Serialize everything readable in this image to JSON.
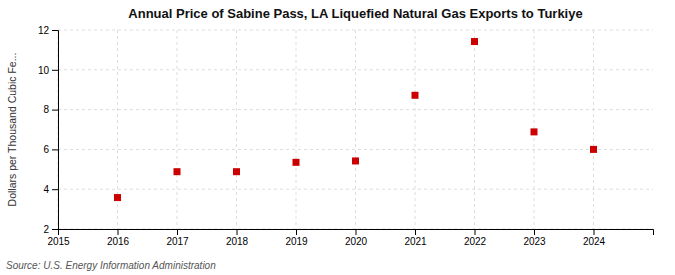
{
  "chart_data": {
    "type": "scatter",
    "title": "Annual Price of Sabine Pass, LA Liquefied Natural Gas Exports to Turkiye",
    "ylabel": "Dollars per Thousand Cubic Fe...",
    "source": "Source: U.S. Energy Information Administration",
    "x": [
      2016,
      2017,
      2018,
      2019,
      2020,
      2021,
      2022,
      2023,
      2024
    ],
    "y": [
      3.58,
      4.88,
      4.88,
      5.35,
      5.42,
      8.72,
      11.42,
      6.88,
      6.0
    ],
    "color": "#cc0000",
    "marker": "square",
    "xlim": [
      2015,
      2025
    ],
    "ylim": [
      2,
      12
    ],
    "xticks": [
      2015,
      2016,
      2017,
      2018,
      2019,
      2020,
      2021,
      2022,
      2023,
      2024
    ],
    "yticks": [
      2,
      4,
      6,
      8,
      10,
      12
    ],
    "grid": true
  }
}
